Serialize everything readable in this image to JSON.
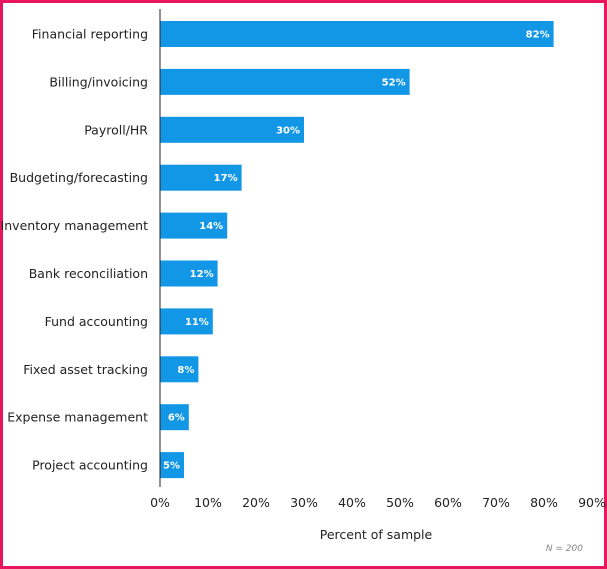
{
  "chart_data": {
    "type": "bar",
    "orientation": "horizontal",
    "categories": [
      "Financial reporting",
      "Billing/invoicing",
      "Payroll/HR",
      "Budgeting/forecasting",
      "Inventory management",
      "Bank reconciliation",
      "Fund accounting",
      "Fixed asset tracking",
      "Expense management",
      "Project accounting"
    ],
    "values": [
      82,
      52,
      30,
      17,
      14,
      12,
      11,
      8,
      6,
      5
    ],
    "value_labels": [
      "82%",
      "52%",
      "30%",
      "17%",
      "14%",
      "12%",
      "11%",
      "8%",
      "6%",
      "5%"
    ],
    "xlabel": "Percent of sample",
    "xlim": [
      0,
      90
    ],
    "xticks": [
      0,
      10,
      20,
      30,
      40,
      50,
      60,
      70,
      80,
      90
    ],
    "xtick_labels": [
      "0%",
      "10%",
      "20%",
      "30%",
      "40%",
      "50%",
      "60%",
      "70%",
      "80%",
      "90%"
    ],
    "note": "N = 200",
    "grid": false,
    "bar_color": "#1296e6",
    "border_color": "#e8175d"
  }
}
